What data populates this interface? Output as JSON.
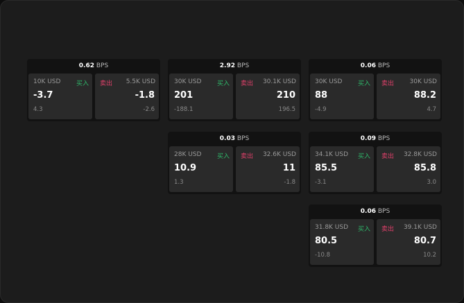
{
  "labels": {
    "buy": "买入",
    "sell": "卖出",
    "unit": "BPS"
  },
  "colors": {
    "buy": "#2fb86a",
    "sell": "#e0406a"
  },
  "cards": [
    {
      "spread": "0.62",
      "buy": {
        "size": "10K USD",
        "price": "-3.7",
        "change": "4.3"
      },
      "sell": {
        "size": "5.5K USD",
        "price": "-1.8",
        "change": "-2.6"
      }
    },
    {
      "spread": "2.92",
      "buy": {
        "size": "30K USD",
        "price": "201",
        "change": "-188.1"
      },
      "sell": {
        "size": "30.1K USD",
        "price": "210",
        "change": "196.5"
      }
    },
    {
      "spread": "0.06",
      "buy": {
        "size": "30K USD",
        "price": "88",
        "change": "-4.9"
      },
      "sell": {
        "size": "30K USD",
        "price": "88.2",
        "change": "4.7"
      }
    },
    {
      "spread": "0.03",
      "buy": {
        "size": "28K USD",
        "price": "10.9",
        "change": "1.3"
      },
      "sell": {
        "size": "32.6K USD",
        "price": "11",
        "change": "-1.8"
      }
    },
    {
      "spread": "0.09",
      "buy": {
        "size": "34.1K USD",
        "price": "85.5",
        "change": "-3.1"
      },
      "sell": {
        "size": "32.8K USD",
        "price": "85.8",
        "change": "3.0"
      }
    },
    {
      "spread": "0.06",
      "buy": {
        "size": "31.8K USD",
        "price": "80.5",
        "change": "-10.8"
      },
      "sell": {
        "size": "39.1K USD",
        "price": "80.7",
        "change": "10.2"
      }
    }
  ]
}
